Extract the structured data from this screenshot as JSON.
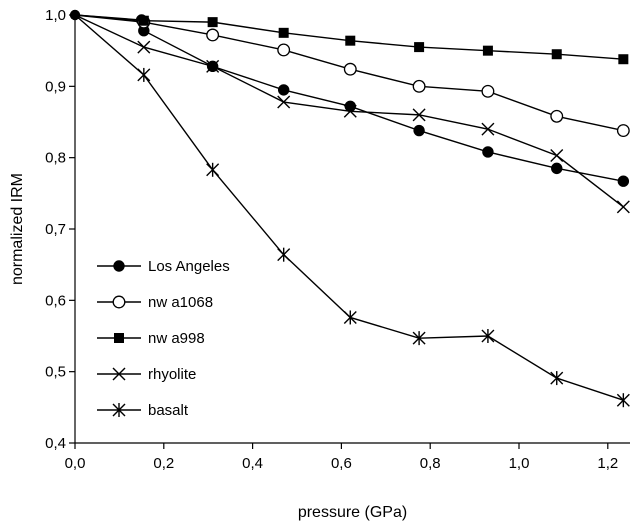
{
  "chart_data": {
    "type": "line",
    "title": "",
    "xlabel": "pressure (GPa)",
    "ylabel": "normalized IRM",
    "xlim": [
      0,
      1.25
    ],
    "ylim": [
      0.4,
      1.0
    ],
    "x_ticks": [
      0.0,
      0.2,
      0.4,
      0.6,
      0.8,
      1.0,
      1.2
    ],
    "x_tick_labels": [
      "0,0",
      "0,2",
      "0,4",
      "0,6",
      "0,8",
      "1,0",
      "1,2"
    ],
    "y_ticks": [
      0.4,
      0.5,
      0.6,
      0.7,
      0.8,
      0.9,
      1.0
    ],
    "y_tick_labels": [
      "0,4",
      "0,5",
      "0,6",
      "0,7",
      "0,8",
      "0,9",
      "1,0"
    ],
    "grid": false,
    "legend_position": "bottom-left",
    "series": [
      {
        "name": "Los Angeles",
        "marker": "filled-circle",
        "x": [
          0,
          0.15,
          0.155,
          0.31,
          0.47,
          0.62,
          0.775,
          0.93,
          1.085,
          1.235
        ],
        "y": [
          1.0,
          0.993,
          0.978,
          0.928,
          0.895,
          0.872,
          0.838,
          0.808,
          0.785,
          0.767
        ]
      },
      {
        "name": "nw a1068",
        "marker": "open-circle",
        "x": [
          0,
          0.155,
          0.31,
          0.47,
          0.62,
          0.775,
          0.93,
          1.085,
          1.235
        ],
        "y": [
          1.0,
          0.99,
          0.972,
          0.951,
          0.924,
          0.9,
          0.893,
          0.858,
          0.838
        ]
      },
      {
        "name": "nw a998",
        "marker": "filled-square",
        "x": [
          0,
          0.155,
          0.31,
          0.47,
          0.62,
          0.775,
          0.93,
          1.085,
          1.235
        ],
        "y": [
          1.0,
          0.992,
          0.99,
          0.975,
          0.964,
          0.955,
          0.95,
          0.945,
          0.938
        ]
      },
      {
        "name": "rhyolite",
        "marker": "x",
        "x": [
          0,
          0.155,
          0.31,
          0.47,
          0.62,
          0.775,
          0.93,
          1.085,
          1.235
        ],
        "y": [
          1.0,
          0.955,
          0.928,
          0.878,
          0.865,
          0.86,
          0.84,
          0.803,
          0.731
        ]
      },
      {
        "name": "basalt",
        "marker": "asterisk",
        "x": [
          0,
          0.155,
          0.31,
          0.47,
          0.62,
          0.775,
          0.93,
          1.085,
          1.235
        ],
        "y": [
          1.0,
          0.916,
          0.783,
          0.664,
          0.576,
          0.547,
          0.55,
          0.491,
          0.46
        ]
      }
    ]
  }
}
